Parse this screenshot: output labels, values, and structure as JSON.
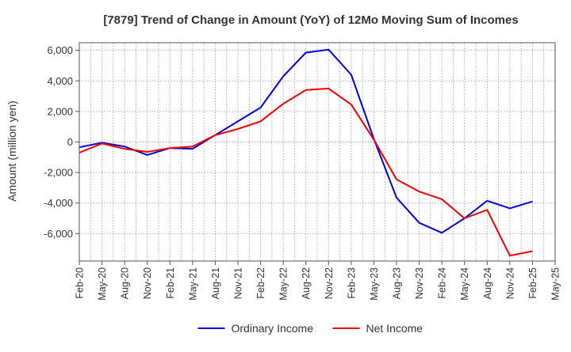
{
  "chart_data": {
    "type": "line",
    "title": "[7879]  Trend of Change in Amount (YoY) of 12Mo Moving Sum of Incomes",
    "xlabel": "",
    "ylabel": "Amount (million yen)",
    "ylim": [
      -7800,
      6500
    ],
    "yticks": [
      6000,
      4000,
      2000,
      0,
      -2000,
      -4000,
      -6000
    ],
    "ytick_labels": [
      "6,000",
      "4,000",
      "2,000",
      "0",
      "-2,000",
      "-4,000",
      "-6,000"
    ],
    "xtick_labels": [
      "Feb-20",
      "May-20",
      "Aug-20",
      "Nov-20",
      "Feb-21",
      "May-21",
      "Aug-21",
      "Nov-21",
      "Feb-22",
      "May-22",
      "Aug-22",
      "Nov-22",
      "Feb-23",
      "May-23",
      "Aug-23",
      "Nov-23",
      "Feb-24",
      "May-24",
      "Aug-24",
      "Nov-24",
      "Feb-25",
      "May-25"
    ],
    "x": [
      "Feb-20",
      "May-20",
      "Aug-20",
      "Nov-20",
      "Feb-21",
      "May-21",
      "Aug-21",
      "Nov-21",
      "Feb-22",
      "May-22",
      "Aug-22",
      "Nov-22",
      "Feb-23",
      "May-23",
      "Aug-23",
      "Nov-23",
      "Feb-24",
      "May-24",
      "Aug-24",
      "Nov-24",
      "Feb-25"
    ],
    "grid": true,
    "legend_position": "bottom-center",
    "series": [
      {
        "name": "Ordinary Income",
        "color": "#0000dd",
        "values": [
          -350,
          -50,
          -300,
          -850,
          -400,
          -450,
          450,
          1350,
          2250,
          4300,
          5850,
          6050,
          4400,
          200,
          -3650,
          -5300,
          -5950,
          -5000,
          -3850,
          -4350,
          -3900
        ]
      },
      {
        "name": "Net Income",
        "color": "#ee0000",
        "values": [
          -700,
          -100,
          -450,
          -650,
          -400,
          -300,
          450,
          850,
          1350,
          2500,
          3400,
          3500,
          2450,
          150,
          -2450,
          -3250,
          -3750,
          -5000,
          -4450,
          -7450,
          -7150
        ]
      }
    ]
  }
}
